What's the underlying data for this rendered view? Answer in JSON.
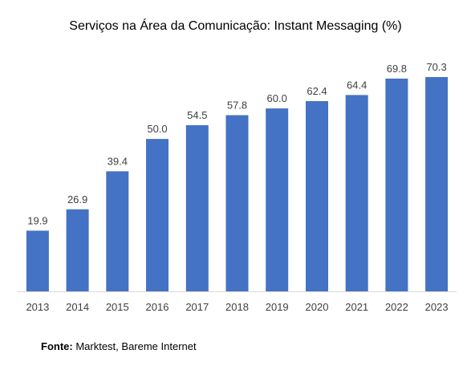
{
  "chart_data": {
    "type": "bar",
    "title": "Serviços na Área da Comunicação: Instant Messaging (%)",
    "xlabel": "",
    "ylabel": "",
    "categories": [
      "2013",
      "2014",
      "2015",
      "2016",
      "2017",
      "2018",
      "2019",
      "2020",
      "2021",
      "2022",
      "2023"
    ],
    "values": [
      19.9,
      26.9,
      39.4,
      50.0,
      54.5,
      57.8,
      60.0,
      62.4,
      64.4,
      69.8,
      70.3
    ],
    "value_labels": [
      "19.9",
      "26.9",
      "39.4",
      "50.0",
      "54.5",
      "57.8",
      "60.0",
      "62.4",
      "64.4",
      "69.8",
      "70.3"
    ],
    "ylim": [
      0,
      70.3
    ],
    "grid": false,
    "legend": "none",
    "colors": {
      "bar": "#4472C4",
      "axis": "#D9D9D9"
    }
  },
  "source": {
    "label": "Fonte:",
    "text": " Marktest, Bareme Internet"
  }
}
